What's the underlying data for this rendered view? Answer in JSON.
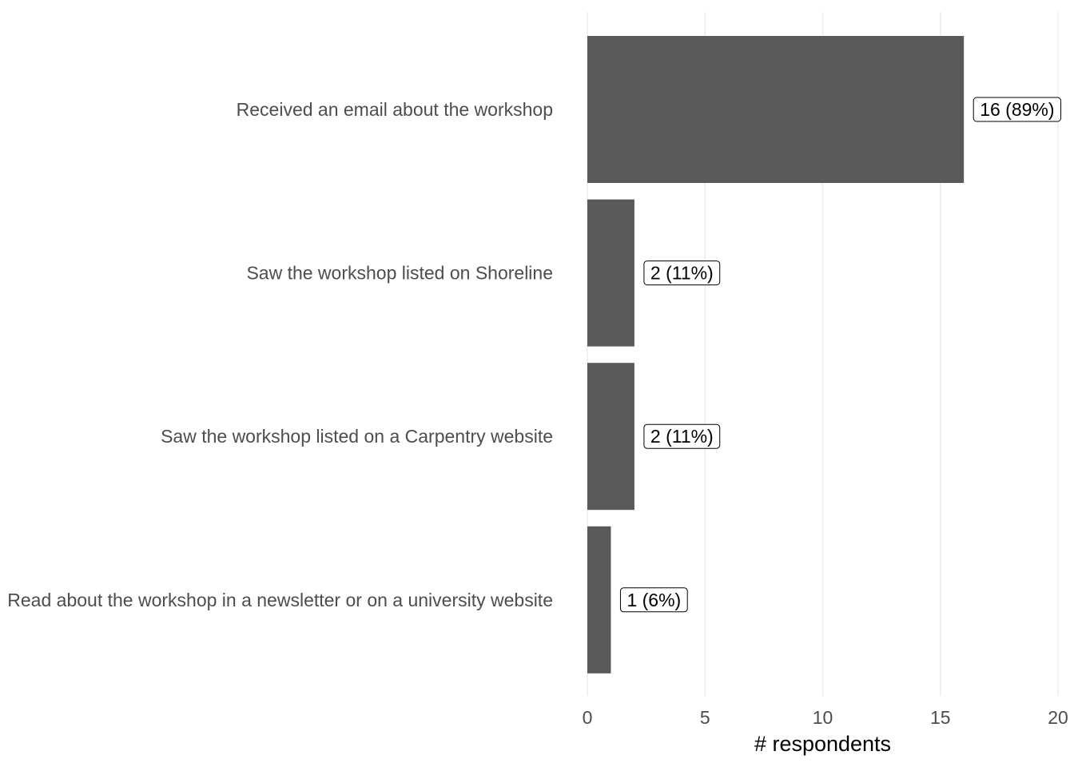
{
  "chart_data": {
    "type": "bar",
    "orientation": "horizontal",
    "categories": [
      "Received an email about the workshop",
      "Saw the workshop listed on Shoreline",
      "Saw the workshop listed on a Carpentry website",
      "Read about the workshop in a newsletter or on a university website"
    ],
    "values": [
      16,
      2,
      2,
      1
    ],
    "data_labels": [
      "16 (89%)",
      "2 (11%)",
      "2 (11%)",
      "1 (6%)"
    ],
    "xlabel": "# respondents",
    "ylabel": "",
    "xlim": [
      0,
      20
    ],
    "x_ticks": [
      0,
      5,
      10,
      15,
      20
    ],
    "x_tick_labels": [
      "0",
      "5",
      "10",
      "15",
      "20"
    ],
    "grid": "vertical",
    "legend": "none",
    "colors": {
      "bar": "#595959",
      "grid": "#ebebeb",
      "label_border": "#000000",
      "label_bg": "#ffffff"
    }
  }
}
